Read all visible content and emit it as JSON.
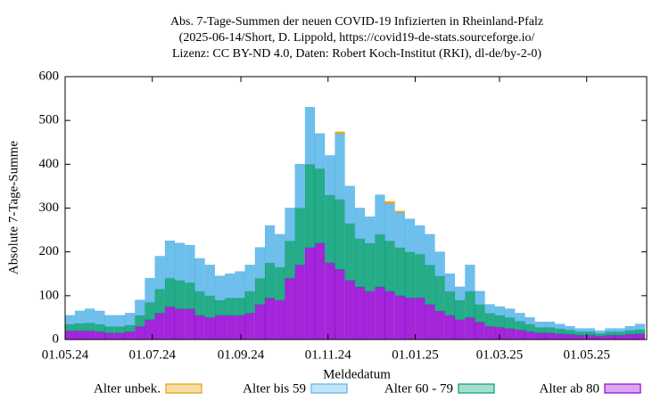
{
  "chart_data": {
    "type": "stacked_bar",
    "title": [
      "Abs. 7-Tage-Summen der neuen COVID-19 Infizierten in Rheinland-Pfalz",
      "(2025-06-14/Short, D. Lippold, https://covid19-de-stats.sourceforge.io/",
      "Lizenz: CC BY-ND 4.0, Daten: Robert Koch-Institut (RKI), dl-de/by-2-0)"
    ],
    "xlabel": "Meldedatum",
    "ylabel": "Absolute 7-Tage-Summe",
    "x": [
      "2024-05-01",
      "2024-05-08",
      "2024-05-15",
      "2024-05-22",
      "2024-05-29",
      "2024-06-05",
      "2024-06-12",
      "2024-06-19",
      "2024-06-26",
      "2024-07-03",
      "2024-07-10",
      "2024-07-17",
      "2024-07-24",
      "2024-07-31",
      "2024-08-07",
      "2024-08-14",
      "2024-08-21",
      "2024-08-28",
      "2024-09-04",
      "2024-09-11",
      "2024-09-18",
      "2024-09-25",
      "2024-10-02",
      "2024-10-09",
      "2024-10-16",
      "2024-10-23",
      "2024-10-30",
      "2024-11-06",
      "2024-11-13",
      "2024-11-20",
      "2024-11-27",
      "2024-12-04",
      "2024-12-11",
      "2024-12-18",
      "2024-12-25",
      "2025-01-01",
      "2025-01-08",
      "2025-01-15",
      "2025-01-22",
      "2025-01-29",
      "2025-02-05",
      "2025-02-12",
      "2025-02-19",
      "2025-02-26",
      "2025-03-05",
      "2025-03-12",
      "2025-03-19",
      "2025-03-26",
      "2025-04-02",
      "2025-04-09",
      "2025-04-16",
      "2025-04-23",
      "2025-04-30",
      "2025-05-07",
      "2025-05-14",
      "2025-05-21",
      "2025-05-28",
      "2025-06-04"
    ],
    "series": [
      {
        "name": "Alter ab 80",
        "color": "#9400d3",
        "values": [
          20,
          20,
          20,
          18,
          15,
          15,
          18,
          30,
          45,
          60,
          75,
          70,
          70,
          55,
          50,
          55,
          55,
          55,
          60,
          80,
          95,
          90,
          140,
          170,
          210,
          220,
          175,
          160,
          135,
          120,
          110,
          120,
          110,
          100,
          95,
          95,
          80,
          65,
          55,
          45,
          50,
          40,
          30,
          28,
          25,
          22,
          18,
          15,
          15,
          13,
          12,
          10,
          10,
          8,
          10,
          10,
          12,
          13
        ]
      },
      {
        "name": "Alter 60 - 79",
        "color": "#009e73",
        "values": [
          15,
          17,
          18,
          17,
          15,
          15,
          15,
          25,
          40,
          55,
          65,
          65,
          60,
          55,
          50,
          35,
          40,
          40,
          50,
          60,
          80,
          75,
          85,
          130,
          190,
          170,
          155,
          160,
          130,
          110,
          110,
          120,
          115,
          110,
          105,
          100,
          90,
          80,
          55,
          45,
          60,
          40,
          30,
          27,
          25,
          20,
          17,
          13,
          13,
          12,
          10,
          8,
          8,
          6,
          8,
          8,
          9,
          10
        ]
      },
      {
        "name": "Alter bis 59",
        "color": "#56b4e9",
        "values": [
          20,
          28,
          32,
          30,
          25,
          25,
          27,
          35,
          55,
          75,
          85,
          85,
          85,
          75,
          70,
          55,
          55,
          60,
          60,
          70,
          85,
          75,
          75,
          100,
          130,
          80,
          90,
          150,
          85,
          70,
          60,
          90,
          85,
          80,
          75,
          65,
          70,
          55,
          40,
          30,
          60,
          30,
          20,
          20,
          20,
          18,
          15,
          12,
          12,
          10,
          8,
          7,
          7,
          6,
          7,
          7,
          9,
          12
        ]
      },
      {
        "name": "Alter unbek.",
        "color": "#e69f00",
        "values": [
          0,
          0,
          0,
          0,
          0,
          0,
          0,
          0,
          0,
          0,
          0,
          0,
          0,
          0,
          0,
          0,
          0,
          0,
          0,
          0,
          0,
          0,
          0,
          0,
          0,
          0,
          0,
          4,
          0,
          0,
          0,
          0,
          5,
          3,
          0,
          0,
          0,
          0,
          0,
          0,
          0,
          0,
          0,
          0,
          0,
          0,
          0,
          0,
          0,
          0,
          0,
          0,
          0,
          0,
          0,
          0,
          0,
          0
        ]
      }
    ],
    "legend_order": [
      3,
      2,
      1,
      0
    ],
    "xlim": [
      "2024-05-01",
      "2025-06-12"
    ],
    "xticks": [
      {
        "value": "2024-05-01",
        "label": "01.05.24"
      },
      {
        "value": "2024-07-01",
        "label": "01.07.24"
      },
      {
        "value": "2024-09-01",
        "label": "01.09.24"
      },
      {
        "value": "2024-11-01",
        "label": "01.11.24"
      },
      {
        "value": "2025-01-01",
        "label": "01.01.25"
      },
      {
        "value": "2025-03-01",
        "label": "01.03.25"
      },
      {
        "value": "2025-05-01",
        "label": "01.05.25"
      }
    ],
    "ylim": [
      0,
      600
    ],
    "yticks": [
      0,
      100,
      200,
      300,
      400,
      500,
      600
    ],
    "grid": false
  }
}
